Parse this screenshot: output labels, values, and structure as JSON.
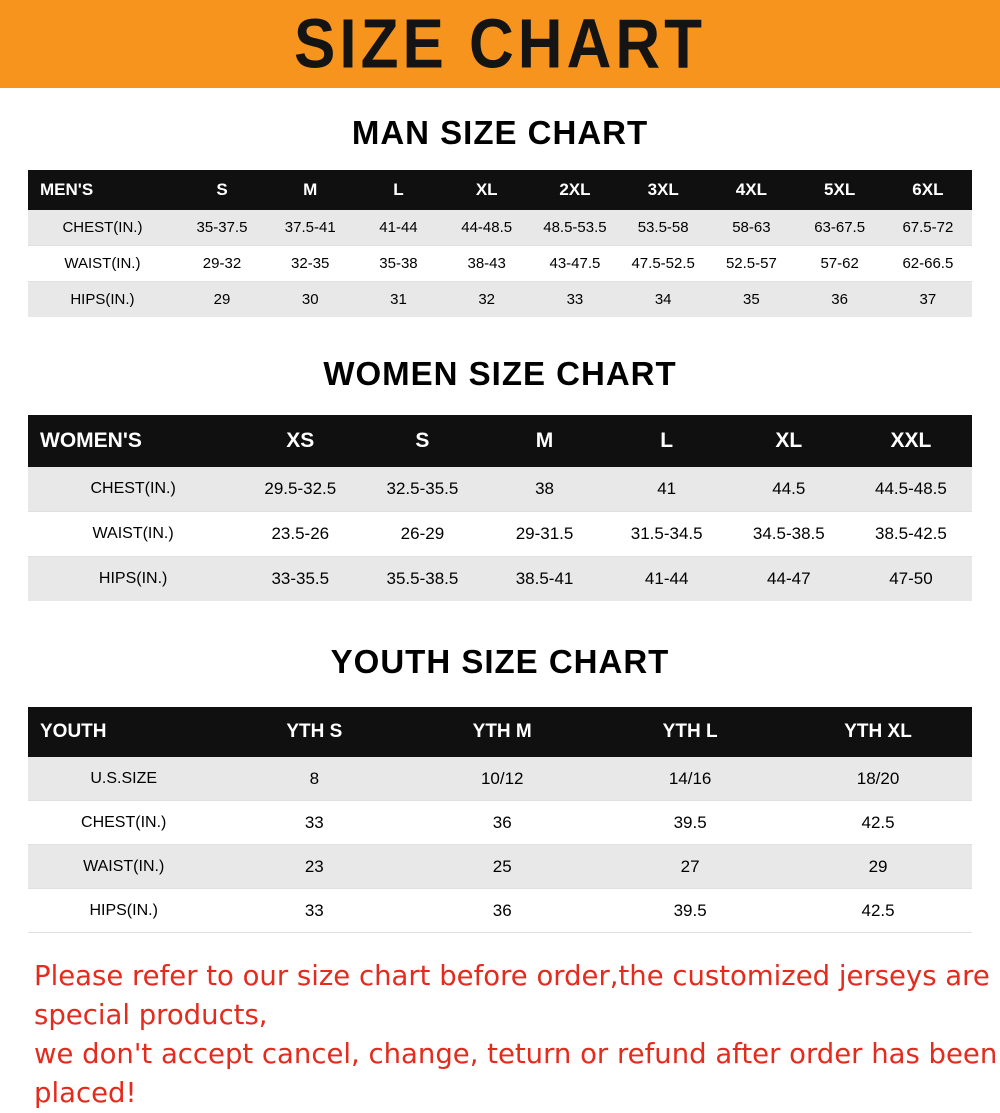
{
  "banner": {
    "title": "SIZE CHART"
  },
  "colors": {
    "banner_bg": "#F7941E",
    "header_bg": "#101010",
    "row_gray": "#e8e8e8",
    "footer_red": "#e42b1e"
  },
  "sections": [
    {
      "key": "men",
      "title": "MAN SIZE CHART",
      "header_label": "MEN'S",
      "columns": [
        "S",
        "M",
        "L",
        "XL",
        "2XL",
        "3XL",
        "4XL",
        "5XL",
        "6XL"
      ],
      "rows": [
        {
          "label": "CHEST(IN.)",
          "values": [
            "35-37.5",
            "37.5-41",
            "41-44",
            "44-48.5",
            "48.5-53.5",
            "53.5-58",
            "58-63",
            "63-67.5",
            "67.5-72"
          ]
        },
        {
          "label": "WAIST(IN.)",
          "values": [
            "29-32",
            "32-35",
            "35-38",
            "38-43",
            "43-47.5",
            "47.5-52.5",
            "52.5-57",
            "57-62",
            "62-66.5"
          ]
        },
        {
          "label": "HIPS(IN.)",
          "values": [
            "29",
            "30",
            "31",
            "32",
            "33",
            "34",
            "35",
            "36",
            "37"
          ]
        }
      ]
    },
    {
      "key": "women",
      "title": "WOMEN SIZE CHART",
      "header_label": "WOMEN'S",
      "columns": [
        "XS",
        "S",
        "M",
        "L",
        "XL",
        "XXL"
      ],
      "rows": [
        {
          "label": "CHEST(IN.)",
          "values": [
            "29.5-32.5",
            "32.5-35.5",
            "38",
            "41",
            "44.5",
            "44.5-48.5"
          ]
        },
        {
          "label": "WAIST(IN.)",
          "values": [
            "23.5-26",
            "26-29",
            "29-31.5",
            "31.5-34.5",
            "34.5-38.5",
            "38.5-42.5"
          ]
        },
        {
          "label": "HIPS(IN.)",
          "values": [
            "33-35.5",
            "35.5-38.5",
            "38.5-41",
            "41-44",
            "44-47",
            "47-50"
          ]
        }
      ]
    },
    {
      "key": "youth",
      "title": "YOUTH SIZE CHART",
      "header_label": "YOUTH",
      "columns": [
        "YTH S",
        "YTH M",
        "YTH L",
        "YTH XL"
      ],
      "rows": [
        {
          "label": "U.S.SIZE",
          "values": [
            "8",
            "10/12",
            "14/16",
            "18/20"
          ]
        },
        {
          "label": "CHEST(IN.)",
          "values": [
            "33",
            "36",
            "39.5",
            "42.5"
          ]
        },
        {
          "label": "WAIST(IN.)",
          "values": [
            "23",
            "25",
            "27",
            "29"
          ]
        },
        {
          "label": "HIPS(IN.)",
          "values": [
            "33",
            "36",
            "39.5",
            "42.5"
          ]
        }
      ]
    }
  ],
  "footer": {
    "line1": "Please refer to our size chart before order,the customized jerseys are special products,",
    "line2": "we don't accept cancel, change, teturn or refund after order has been placed!"
  }
}
